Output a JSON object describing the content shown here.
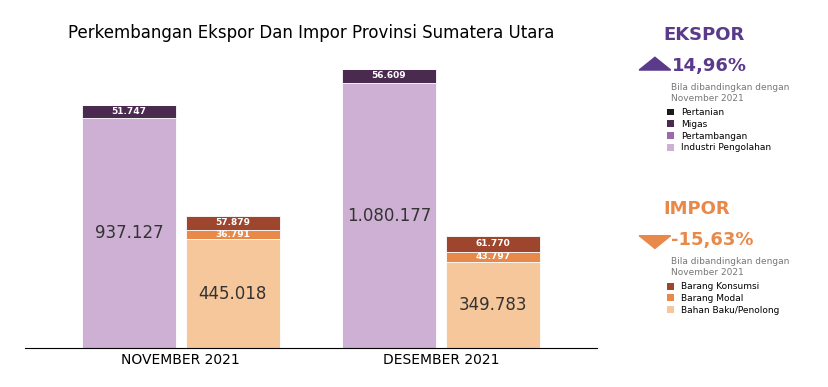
{
  "chart_data": {
    "type": "bar",
    "stacked": true,
    "data_labels": true,
    "tick_labels": "x",
    "title": "Perkembangan Ekspor Dan Impor Provinsi Sumatera Utara",
    "categories": [
      "NOVEMBER 2021",
      "DESEMBER 2021"
    ],
    "groups": [
      {
        "name": "EKSPOR",
        "change": "14,96%",
        "note": "Bila dibandingkan dengan November 2021",
        "series": [
          {
            "name": "Industri Pengolahan",
            "color": "#cdb0d3",
            "values": [
              937127,
              1080177
            ],
            "value_labels": [
              "937.127",
              "1.080.177"
            ]
          },
          {
            "name": "Pertambangan",
            "color": "#9b6aa8",
            "values": [
              0,
              0
            ],
            "value_labels": [
              null,
              null
            ]
          },
          {
            "name": "Migas",
            "color": "#4b2a50",
            "values": [
              51747,
              56609
            ],
            "value_labels": [
              "51.747",
              "56.609"
            ]
          },
          {
            "name": "Pertanian",
            "color": "#1a1a1a",
            "values": [
              0,
              0
            ],
            "value_labels": [
              null,
              null
            ]
          }
        ]
      },
      {
        "name": "IMPOR",
        "change": "-15,63%",
        "note": "Bila dibandingkan dengan November 2021",
        "series": [
          {
            "name": "Bahan Baku/Penolong",
            "color": "#f6c79a",
            "values": [
              445018,
              349783
            ],
            "value_labels": [
              "445.018",
              "349.783"
            ]
          },
          {
            "name": "Barang Modal",
            "color": "#e8894a",
            "values": [
              36791,
              43797
            ],
            "value_labels": [
              "36.791",
              "43.797"
            ]
          },
          {
            "name": "Barang Konsumsi",
            "color": "#9e452e",
            "values": [
              57879,
              61770
            ],
            "value_labels": [
              "57.879",
              "61.770"
            ]
          }
        ]
      }
    ]
  }
}
